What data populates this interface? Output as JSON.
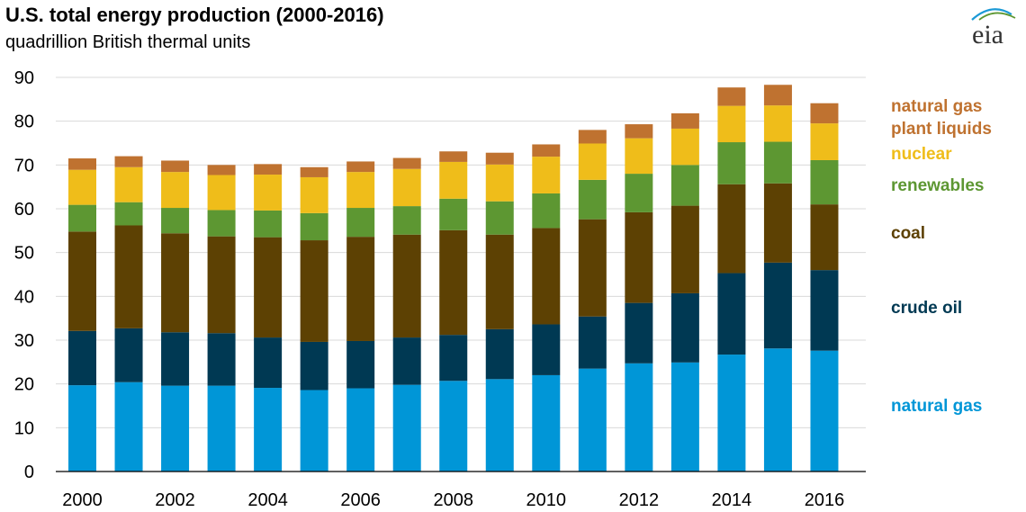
{
  "header": {
    "title": "U.S. total energy production (2000-2016)",
    "subtitle": "quadrillion British thermal units"
  },
  "logo": {
    "text": "eia",
    "icon": "eia-logo-icon"
  },
  "chart_data": {
    "type": "bar",
    "stacked": true,
    "title": "U.S. total energy production (2000-2016)",
    "ylabel": "quadrillion British thermal units",
    "ylim": [
      0,
      90
    ],
    "yticks": [
      0,
      10,
      20,
      30,
      40,
      50,
      60,
      70,
      80,
      90
    ],
    "grid": true,
    "legend": "right",
    "categories": [
      "2000",
      "2001",
      "2002",
      "2003",
      "2004",
      "2005",
      "2006",
      "2007",
      "2008",
      "2009",
      "2010",
      "2011",
      "2012",
      "2013",
      "2014",
      "2015",
      "2016"
    ],
    "xtick_labels": [
      "2000",
      "2002",
      "2004",
      "2006",
      "2008",
      "2010",
      "2012",
      "2014",
      "2016"
    ],
    "series": [
      {
        "name": "natural gas",
        "color": "#0096d7",
        "values": [
          19.7,
          20.4,
          19.6,
          19.6,
          19.1,
          18.6,
          19.0,
          19.8,
          20.7,
          21.1,
          22.0,
          23.5,
          24.7,
          24.9,
          26.7,
          28.1,
          27.6
        ]
      },
      {
        "name": "crude oil",
        "color": "#003953",
        "values": [
          12.4,
          12.3,
          12.2,
          12.0,
          11.5,
          11.0,
          10.8,
          10.8,
          10.5,
          11.4,
          11.6,
          11.9,
          13.8,
          15.8,
          18.6,
          19.6,
          18.4
        ]
      },
      {
        "name": "coal",
        "color": "#5d4103",
        "values": [
          22.7,
          23.5,
          22.6,
          22.1,
          22.9,
          23.2,
          23.8,
          23.5,
          23.9,
          21.6,
          22.0,
          22.2,
          20.7,
          20.0,
          20.3,
          18.1,
          15.0
        ]
      },
      {
        "name": "renewables",
        "color": "#5d9732",
        "values": [
          6.1,
          5.3,
          5.8,
          6.0,
          6.1,
          6.2,
          6.6,
          6.5,
          7.2,
          7.6,
          7.9,
          9.0,
          8.8,
          9.3,
          9.6,
          9.5,
          10.1
        ]
      },
      {
        "name": "nuclear",
        "color": "#efbd1a",
        "values": [
          8.0,
          8.0,
          8.2,
          8.0,
          8.2,
          8.2,
          8.2,
          8.5,
          8.4,
          8.4,
          8.4,
          8.3,
          8.1,
          8.3,
          8.3,
          8.3,
          8.4
        ]
      },
      {
        "name": "natural gas plant liquids",
        "color": "#bf7230",
        "values": [
          2.6,
          2.5,
          2.6,
          2.3,
          2.4,
          2.3,
          2.4,
          2.5,
          2.4,
          2.7,
          2.8,
          3.1,
          3.2,
          3.5,
          4.2,
          4.7,
          4.6
        ]
      }
    ]
  },
  "legend": [
    {
      "lines": [
        "natural gas",
        "plant liquids"
      ],
      "color": "#bf7230"
    },
    {
      "lines": [
        "nuclear"
      ],
      "color": "#efbd1a"
    },
    {
      "lines": [
        "renewables"
      ],
      "color": "#5d9732"
    },
    {
      "lines": [
        "coal"
      ],
      "color": "#5d4103"
    },
    {
      "lines": [
        "crude oil"
      ],
      "color": "#003953"
    },
    {
      "lines": [
        "natural gas"
      ],
      "color": "#0096d7"
    }
  ]
}
